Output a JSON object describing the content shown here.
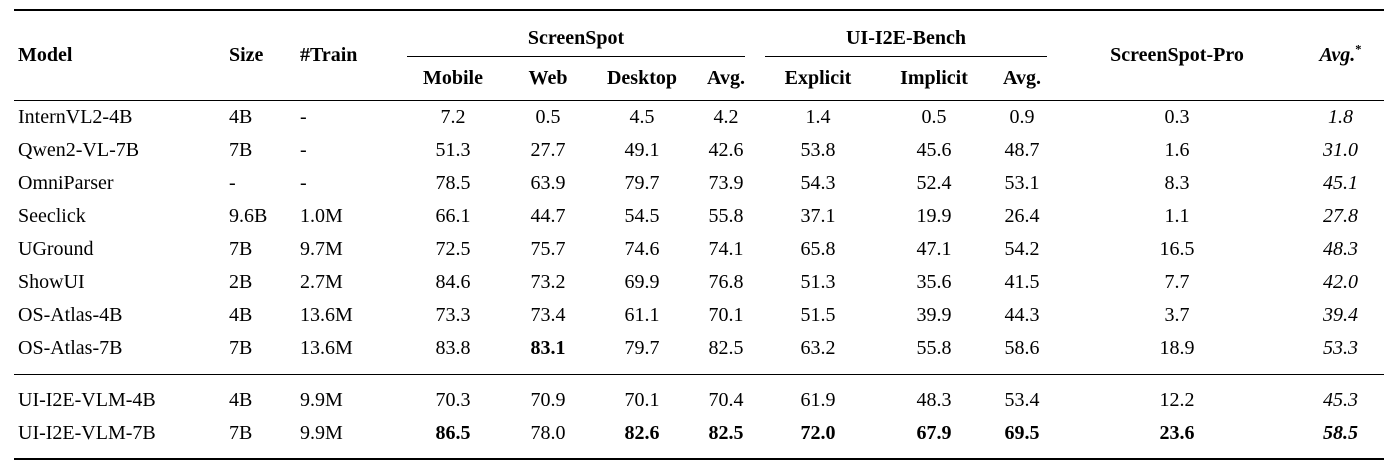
{
  "page": {
    "background": "#ffffff",
    "text_color": "#000000"
  },
  "table": {
    "columns": {
      "model": "Model",
      "size": "Size",
      "train": "#Train",
      "screenspot": {
        "label": "ScreenSpot",
        "sub": [
          "Mobile",
          "Web",
          "Desktop",
          "Avg."
        ]
      },
      "ui_i2e_bench": {
        "label": "UI-I2E-Bench",
        "sub": [
          "Explicit",
          "Implicit",
          "Avg."
        ]
      },
      "screenspot_pro": "ScreenSpot-Pro",
      "avg_star": {
        "label": "Avg.",
        "superscript": "*"
      }
    },
    "value_keys": [
      "mobile",
      "web",
      "desktop",
      "ss_avg",
      "explicit",
      "implicit",
      "i2e_avg",
      "ss_pro",
      "avg_star"
    ],
    "sections": [
      {
        "name": "baselines",
        "rows": [
          {
            "model": "InternVL2-4B",
            "size": "4B",
            "train": "-",
            "values": {
              "mobile": "7.2",
              "web": "0.5",
              "desktop": "4.5",
              "ss_avg": "4.2",
              "explicit": "1.4",
              "implicit": "0.5",
              "i2e_avg": "0.9",
              "ss_pro": "0.3",
              "avg_star": "1.8"
            },
            "bold": []
          },
          {
            "model": "Qwen2-VL-7B",
            "size": "7B",
            "train": "-",
            "values": {
              "mobile": "51.3",
              "web": "27.7",
              "desktop": "49.1",
              "ss_avg": "42.6",
              "explicit": "53.8",
              "implicit": "45.6",
              "i2e_avg": "48.7",
              "ss_pro": "1.6",
              "avg_star": "31.0"
            },
            "bold": []
          },
          {
            "model": "OmniParser",
            "size": "-",
            "train": "-",
            "values": {
              "mobile": "78.5",
              "web": "63.9",
              "desktop": "79.7",
              "ss_avg": "73.9",
              "explicit": "54.3",
              "implicit": "52.4",
              "i2e_avg": "53.1",
              "ss_pro": "8.3",
              "avg_star": "45.1"
            },
            "bold": []
          },
          {
            "model": "Seeclick",
            "size": "9.6B",
            "train": "1.0M",
            "values": {
              "mobile": "66.1",
              "web": "44.7",
              "desktop": "54.5",
              "ss_avg": "55.8",
              "explicit": "37.1",
              "implicit": "19.9",
              "i2e_avg": "26.4",
              "ss_pro": "1.1",
              "avg_star": "27.8"
            },
            "bold": []
          },
          {
            "model": "UGround",
            "size": "7B",
            "train": "9.7M",
            "values": {
              "mobile": "72.5",
              "web": "75.7",
              "desktop": "74.6",
              "ss_avg": "74.1",
              "explicit": "65.8",
              "implicit": "47.1",
              "i2e_avg": "54.2",
              "ss_pro": "16.5",
              "avg_star": "48.3"
            },
            "bold": []
          },
          {
            "model": "ShowUI",
            "size": "2B",
            "train": "2.7M",
            "values": {
              "mobile": "84.6",
              "web": "73.2",
              "desktop": "69.9",
              "ss_avg": "76.8",
              "explicit": "51.3",
              "implicit": "35.6",
              "i2e_avg": "41.5",
              "ss_pro": "7.7",
              "avg_star": "42.0"
            },
            "bold": []
          },
          {
            "model": "OS-Atlas-4B",
            "size": "4B",
            "train": "13.6M",
            "values": {
              "mobile": "73.3",
              "web": "73.4",
              "desktop": "61.1",
              "ss_avg": "70.1",
              "explicit": "51.5",
              "implicit": "39.9",
              "i2e_avg": "44.3",
              "ss_pro": "3.7",
              "avg_star": "39.4"
            },
            "bold": []
          },
          {
            "model": "OS-Atlas-7B",
            "size": "7B",
            "train": "13.6M",
            "values": {
              "mobile": "83.8",
              "web": "83.1",
              "desktop": "79.7",
              "ss_avg": "82.5",
              "explicit": "63.2",
              "implicit": "55.8",
              "i2e_avg": "58.6",
              "ss_pro": "18.9",
              "avg_star": "53.3"
            },
            "bold": [
              "web"
            ]
          }
        ]
      },
      {
        "name": "ours",
        "rows": [
          {
            "model": "UI-I2E-VLM-4B",
            "size": "4B",
            "train": "9.9M",
            "values": {
              "mobile": "70.3",
              "web": "70.9",
              "desktop": "70.1",
              "ss_avg": "70.4",
              "explicit": "61.9",
              "implicit": "48.3",
              "i2e_avg": "53.4",
              "ss_pro": "12.2",
              "avg_star": "45.3"
            },
            "bold": []
          },
          {
            "model": "UI-I2E-VLM-7B",
            "size": "7B",
            "train": "9.9M",
            "values": {
              "mobile": "86.5",
              "web": "78.0",
              "desktop": "82.6",
              "ss_avg": "82.5",
              "explicit": "72.0",
              "implicit": "67.9",
              "i2e_avg": "69.5",
              "ss_pro": "23.6",
              "avg_star": "58.5"
            },
            "bold": [
              "mobile",
              "desktop",
              "ss_avg",
              "explicit",
              "implicit",
              "i2e_avg",
              "ss_pro",
              "avg_star"
            ]
          }
        ]
      }
    ]
  }
}
